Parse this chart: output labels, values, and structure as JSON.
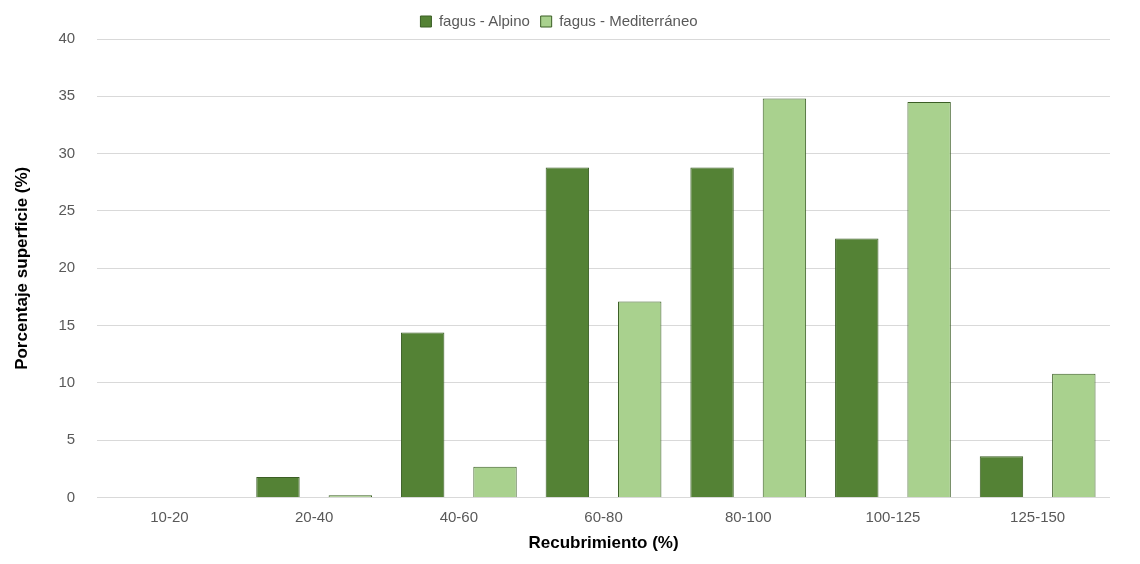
{
  "chart_data": {
    "type": "bar",
    "xlabel": "Recubrimiento (%)",
    "ylabel": "Porcentaje superficie (%)",
    "categories": [
      "10-20",
      "20-40",
      "40-60",
      "60-80",
      "80-100",
      "100-125",
      "125-150"
    ],
    "series": [
      {
        "name": "fagus - Alpino",
        "color": "#548235",
        "values": [
          0,
          1.8,
          14.4,
          28.8,
          28.8,
          22.6,
          3.6
        ]
      },
      {
        "name": "fagus - Mediterráneo",
        "color": "#a9d18e",
        "values": [
          0,
          0.2,
          2.7,
          17.1,
          34.8,
          34.5,
          10.8
        ]
      }
    ],
    "ylim": [
      0,
      40
    ],
    "yticks": [
      0,
      5,
      10,
      15,
      20,
      25,
      30,
      35,
      40
    ],
    "grid": "y",
    "legend": "top"
  }
}
